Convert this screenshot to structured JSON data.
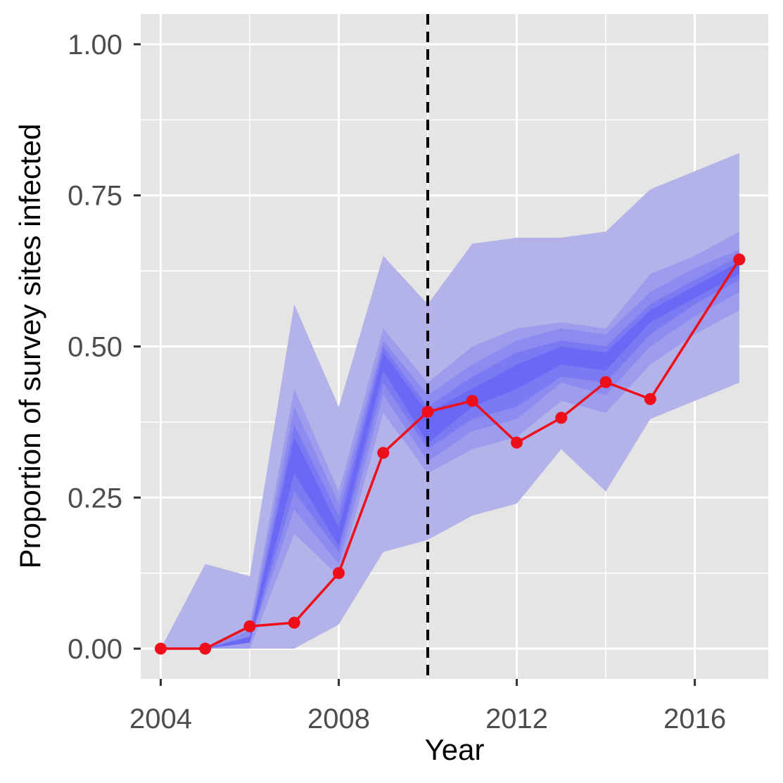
{
  "chart_data": {
    "type": "area",
    "title": "",
    "xlabel": "Year",
    "ylabel": "Proportion of survey sites infected",
    "xlim": [
      2003.55,
      2017.65
    ],
    "ylim": [
      -0.05,
      1.05
    ],
    "x_ticks": [
      2004,
      2008,
      2012,
      2016
    ],
    "x_tick_labels": [
      "2004",
      "2008",
      "2012",
      "2016"
    ],
    "y_ticks": [
      0,
      0.25,
      0.5,
      0.75,
      1.0
    ],
    "y_tick_labels": [
      "0.00",
      "0.25",
      "0.50",
      "0.75",
      "1.00"
    ],
    "grid": true,
    "reference_line": {
      "x": 2010,
      "style": "dashed",
      "color": "#000000"
    },
    "x": [
      2004,
      2005,
      2006,
      2007,
      2008,
      2009,
      2010,
      2011,
      2012,
      2013,
      2014,
      2015,
      2016,
      2017
    ],
    "bands": [
      {
        "level": 1,
        "lower": [
          0.0,
          0.0,
          0.0,
          0.0,
          0.04,
          0.16,
          0.18,
          0.22,
          0.24,
          0.33,
          0.26,
          0.38,
          0.41,
          0.44
        ],
        "upper": [
          0.0,
          0.14,
          0.12,
          0.57,
          0.4,
          0.65,
          0.57,
          0.67,
          0.68,
          0.68,
          0.69,
          0.76,
          0.79,
          0.82
        ]
      },
      {
        "level": 2,
        "lower": [
          0.0,
          0.0,
          0.0,
          0.19,
          0.12,
          0.39,
          0.29,
          0.33,
          0.35,
          0.41,
          0.39,
          0.47,
          0.52,
          0.56
        ],
        "upper": [
          0.0,
          0.0,
          0.04,
          0.43,
          0.26,
          0.53,
          0.44,
          0.5,
          0.53,
          0.54,
          0.53,
          0.62,
          0.65,
          0.69
        ]
      },
      {
        "level": 3,
        "lower": [
          0.0,
          0.0,
          0.01,
          0.23,
          0.14,
          0.42,
          0.31,
          0.36,
          0.38,
          0.44,
          0.42,
          0.5,
          0.55,
          0.59
        ],
        "upper": [
          0.0,
          0.0,
          0.03,
          0.4,
          0.24,
          0.51,
          0.42,
          0.47,
          0.51,
          0.53,
          0.52,
          0.59,
          0.63,
          0.66
        ]
      },
      {
        "level": 4,
        "lower": [
          0.0,
          0.0,
          0.01,
          0.26,
          0.16,
          0.44,
          0.33,
          0.38,
          0.4,
          0.45,
          0.44,
          0.52,
          0.57,
          0.61
        ],
        "upper": [
          0.0,
          0.0,
          0.02,
          0.37,
          0.22,
          0.5,
          0.4,
          0.45,
          0.49,
          0.51,
          0.5,
          0.57,
          0.61,
          0.65
        ]
      },
      {
        "level": 5,
        "lower": [
          0.0,
          0.0,
          0.01,
          0.29,
          0.17,
          0.46,
          0.34,
          0.4,
          0.43,
          0.47,
          0.46,
          0.54,
          0.58,
          0.62
        ],
        "upper": [
          0.0,
          0.0,
          0.02,
          0.35,
          0.2,
          0.49,
          0.39,
          0.43,
          0.47,
          0.5,
          0.49,
          0.56,
          0.6,
          0.64
        ]
      }
    ],
    "series": [
      {
        "values": [
          0.0,
          0.0,
          0.037,
          0.043,
          0.125,
          0.324,
          0.392,
          0.41,
          0.341,
          0.382,
          0.441,
          0.413,
          null,
          0.644
        ],
        "color": "#ee0f1a"
      }
    ],
    "colors": {
      "panel_background": "#e5e5e5",
      "grid": "#ffffff",
      "band_outer": "#b3b3ea",
      "band_fills": [
        "#b3b3ea",
        "#9e9ded",
        "#8c8bf0",
        "#7b7af3",
        "#6a69f6"
      ],
      "series": "#ee0f1a",
      "tick_text": "#4d4d4d",
      "axis_text": "#000000"
    }
  }
}
